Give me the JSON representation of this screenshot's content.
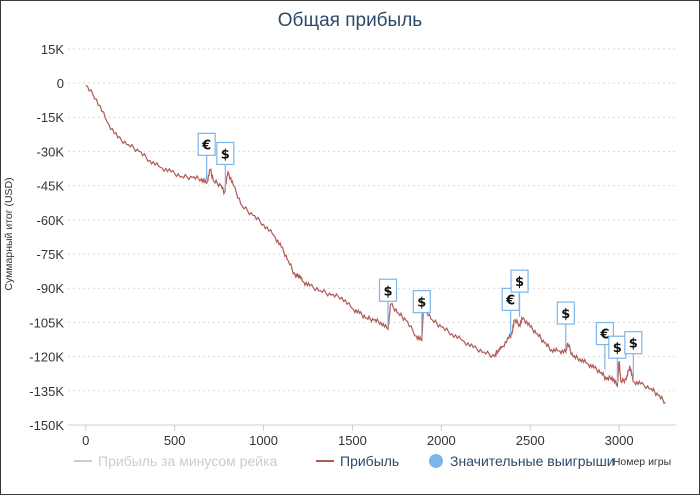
{
  "chart_data": {
    "type": "line",
    "title": "Общая прибыль",
    "xlabel": "Номер игры",
    "ylabel": "Суммарный итог (USD)",
    "xlim": [
      -100,
      3320
    ],
    "ylim": [
      -150000,
      18000
    ],
    "x_ticks": [
      0,
      500,
      1000,
      1500,
      2000,
      2500,
      3000
    ],
    "x_tick_labels": [
      "0",
      "500",
      "1000",
      "1500",
      "2000",
      "2500",
      "3000"
    ],
    "y_ticks": [
      15000,
      0,
      -15000,
      -30000,
      -45000,
      -60000,
      -75000,
      -90000,
      -105000,
      -120000,
      -135000,
      -150000
    ],
    "y_tick_labels": [
      "15K",
      "0",
      "-15K",
      "-30K",
      "-45K",
      "-60K",
      "-75K",
      "-90K",
      "-105K",
      "-120K",
      "-135K",
      "-150K"
    ],
    "grid": true,
    "legend_position": "bottom",
    "series": [
      {
        "name": "Прибыль за минусом рейка",
        "color": "#cccccc",
        "visible": false,
        "x": [],
        "y": []
      },
      {
        "name": "Прибыль",
        "color": "#b05a55",
        "visible": true,
        "x": [
          0,
          60,
          120,
          180,
          240,
          300,
          360,
          420,
          480,
          540,
          600,
          650,
          680,
          700,
          720,
          760,
          780,
          800,
          830,
          880,
          940,
          1000,
          1060,
          1100,
          1140,
          1180,
          1200,
          1220,
          1260,
          1320,
          1380,
          1440,
          1500,
          1540,
          1580,
          1620,
          1660,
          1700,
          1715,
          1760,
          1800,
          1860,
          1890,
          1900,
          1950,
          2000,
          2060,
          2120,
          2180,
          2240,
          2300,
          2320,
          2340,
          2380,
          2400,
          2410,
          2440,
          2460,
          2500,
          2540,
          2580,
          2620,
          2660,
          2700,
          2710,
          2740,
          2780,
          2820,
          2860,
          2900,
          2930,
          2960,
          2990,
          3000,
          3010,
          3040,
          3060,
          3080,
          3120,
          3180,
          3220,
          3260
        ],
        "y": [
          -1000,
          -7000,
          -17000,
          -24000,
          -27000,
          -30000,
          -34000,
          -37000,
          -39000,
          -41000,
          -41500,
          -42000,
          -44000,
          -38000,
          -43000,
          -45000,
          -48000,
          -39000,
          -45000,
          -54000,
          -58000,
          -62000,
          -67000,
          -72000,
          -78000,
          -85000,
          -84000,
          -87000,
          -89000,
          -91000,
          -93000,
          -94000,
          -99000,
          -101000,
          -103000,
          -104000,
          -105000,
          -108000,
          -97000,
          -101000,
          -104000,
          -111000,
          -113000,
          -98000,
          -104000,
          -107000,
          -110000,
          -113000,
          -116000,
          -118000,
          -120000,
          -117000,
          -116000,
          -112000,
          -109000,
          -104000,
          -106000,
          -103000,
          -107000,
          -110000,
          -114000,
          -117000,
          -117500,
          -118000,
          -114000,
          -120000,
          -121000,
          -123000,
          -125000,
          -127000,
          -130000,
          -129000,
          -133000,
          -122000,
          -131000,
          -130000,
          -124000,
          -131000,
          -132000,
          -134000,
          -137000,
          -140000
        ]
      }
    ],
    "significant_wins": {
      "name": "Значительные выигрыши",
      "color": "#7cb5ec",
      "points": [
        {
          "x": 680,
          "y": -44000,
          "label": "€"
        },
        {
          "x": 785,
          "y": -48000,
          "label": "$"
        },
        {
          "x": 1700,
          "y": -108000,
          "label": "$"
        },
        {
          "x": 1890,
          "y": -113000,
          "label": "$"
        },
        {
          "x": 2390,
          "y": -112000,
          "label": "€"
        },
        {
          "x": 2440,
          "y": -104000,
          "label": "$"
        },
        {
          "x": 2700,
          "y": -118000,
          "label": "$"
        },
        {
          "x": 2920,
          "y": -127000,
          "label": "€"
        },
        {
          "x": 2990,
          "y": -133000,
          "label": "$"
        },
        {
          "x": 3080,
          "y": -131000,
          "label": "$"
        }
      ]
    }
  }
}
